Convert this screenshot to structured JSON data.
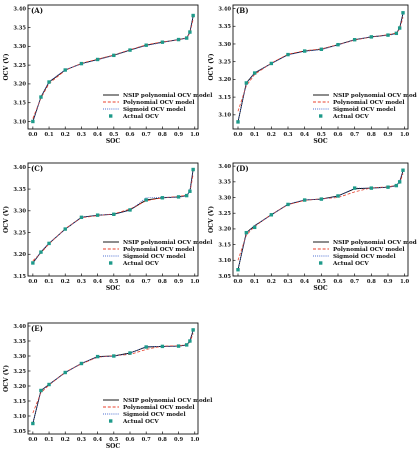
{
  "chart_data": [
    {
      "type": "line",
      "panel_label": "(A)",
      "xlabel": "SOC",
      "ylabel": "OCV (V)",
      "xlim": [
        -0.03,
        1.02
      ],
      "ylim": [
        3.08,
        3.41
      ],
      "x_ticks": [
        0.0,
        0.1,
        0.2,
        0.3,
        0.4,
        0.5,
        0.6,
        0.7,
        0.8,
        0.9,
        1.0
      ],
      "y_ticks": [
        3.1,
        3.15,
        3.2,
        3.25,
        3.3,
        3.35,
        3.4
      ],
      "x_tick_labels": [
        "0.0",
        "0.1",
        "0.2",
        "0.3",
        "0.4",
        "0.5",
        "0.6",
        "0.7",
        "0.8",
        "0.9",
        "1.0"
      ],
      "y_tick_labels": [
        "3.10",
        "3.15",
        "3.20",
        "3.25",
        "3.30",
        "3.35",
        "3.40"
      ],
      "legend_position": "lower-right",
      "x": [
        0.0,
        0.05,
        0.1,
        0.2,
        0.3,
        0.4,
        0.5,
        0.6,
        0.7,
        0.8,
        0.9,
        0.95,
        0.97,
        0.99
      ],
      "series": [
        {
          "name": "NSIP polynomial OCV model",
          "style": "solid",
          "color": "#000000",
          "values": [
            3.1,
            3.165,
            3.205,
            3.237,
            3.254,
            3.265,
            3.276,
            3.29,
            3.303,
            3.311,
            3.318,
            3.322,
            3.338,
            3.38
          ]
        },
        {
          "name": "Polynomial OCV model",
          "style": "dashed",
          "color": "#e8412c",
          "values": [
            3.108,
            3.162,
            3.201,
            3.236,
            3.255,
            3.266,
            3.277,
            3.291,
            3.304,
            3.312,
            3.317,
            3.323,
            3.335,
            3.372
          ]
        },
        {
          "name": "Sigmoid OCV model",
          "style": "dotted",
          "color": "#3a5fcd",
          "values": [
            3.098,
            3.166,
            3.206,
            3.238,
            3.253,
            3.264,
            3.276,
            3.29,
            3.302,
            3.31,
            3.318,
            3.321,
            3.337,
            3.381
          ]
        },
        {
          "name": "Actual OCV",
          "style": "marker",
          "color": "#1e9a8a",
          "values": [
            3.1,
            3.165,
            3.205,
            3.237,
            3.254,
            3.265,
            3.276,
            3.29,
            3.303,
            3.311,
            3.318,
            3.322,
            3.338,
            3.382
          ]
        }
      ]
    },
    {
      "type": "line",
      "panel_label": "(B)",
      "xlabel": "SOC",
      "ylabel": "OCV (V)",
      "xlim": [
        -0.03,
        1.02
      ],
      "ylim": [
        3.06,
        3.41
      ],
      "x_ticks": [
        0.0,
        0.1,
        0.2,
        0.3,
        0.4,
        0.5,
        0.6,
        0.7,
        0.8,
        0.9,
        1.0
      ],
      "y_ticks": [
        3.1,
        3.15,
        3.2,
        3.25,
        3.3,
        3.35,
        3.4
      ],
      "x_tick_labels": [
        "0.0",
        "0.1",
        "0.2",
        "0.3",
        "0.4",
        "0.5",
        "0.6",
        "0.7",
        "0.8",
        "0.9",
        "1.0"
      ],
      "y_tick_labels": [
        "3.10",
        "3.15",
        "3.20",
        "3.25",
        "3.30",
        "3.35",
        "3.40"
      ],
      "legend_position": "lower-right",
      "x": [
        0.0,
        0.05,
        0.1,
        0.2,
        0.3,
        0.4,
        0.5,
        0.6,
        0.7,
        0.8,
        0.9,
        0.95,
        0.97,
        0.99
      ],
      "series": [
        {
          "name": "NSIP polynomial OCV model",
          "style": "solid",
          "color": "#000000",
          "values": [
            3.08,
            3.19,
            3.218,
            3.245,
            3.27,
            3.28,
            3.285,
            3.298,
            3.312,
            3.32,
            3.325,
            3.33,
            3.345,
            3.386
          ]
        },
        {
          "name": "Polynomial OCV model",
          "style": "dashed",
          "color": "#e8412c",
          "values": [
            3.11,
            3.182,
            3.214,
            3.246,
            3.271,
            3.281,
            3.286,
            3.298,
            3.311,
            3.32,
            3.326,
            3.331,
            3.342,
            3.375
          ]
        },
        {
          "name": "Sigmoid OCV model",
          "style": "dotted",
          "color": "#3a5fcd",
          "values": [
            3.082,
            3.188,
            3.219,
            3.245,
            3.269,
            3.279,
            3.284,
            3.297,
            3.312,
            3.321,
            3.324,
            3.329,
            3.346,
            3.385
          ]
        },
        {
          "name": "Actual OCV",
          "style": "marker",
          "color": "#1e9a8a",
          "values": [
            3.08,
            3.19,
            3.218,
            3.245,
            3.27,
            3.28,
            3.285,
            3.298,
            3.312,
            3.32,
            3.325,
            3.33,
            3.345,
            3.388
          ]
        }
      ]
    },
    {
      "type": "line",
      "panel_label": "(C)",
      "xlabel": "SOC",
      "ylabel": "OCV (V)",
      "xlim": [
        -0.03,
        1.02
      ],
      "ylim": [
        3.15,
        3.41
      ],
      "x_ticks": [
        0.0,
        0.1,
        0.2,
        0.3,
        0.4,
        0.5,
        0.6,
        0.7,
        0.8,
        0.9,
        1.0
      ],
      "y_ticks": [
        3.15,
        3.2,
        3.25,
        3.3,
        3.35,
        3.4
      ],
      "x_tick_labels": [
        "0.0",
        "0.1",
        "0.2",
        "0.3",
        "0.4",
        "0.5",
        "0.6",
        "0.7",
        "0.8",
        "0.9",
        "1.0"
      ],
      "y_tick_labels": [
        "3.15",
        "3.20",
        "3.25",
        "3.30",
        "3.35",
        "3.40"
      ],
      "legend_position": "lower-right",
      "x": [
        0.0,
        0.05,
        0.1,
        0.2,
        0.3,
        0.4,
        0.5,
        0.6,
        0.7,
        0.8,
        0.9,
        0.95,
        0.97,
        0.99
      ],
      "series": [
        {
          "name": "NSIP polynomial OCV model",
          "style": "solid",
          "color": "#000000",
          "values": [
            3.18,
            3.205,
            3.225,
            3.258,
            3.285,
            3.29,
            3.292,
            3.302,
            3.325,
            3.33,
            3.332,
            3.335,
            3.345,
            3.395
          ]
        },
        {
          "name": "Polynomial OCV model",
          "style": "dashed",
          "color": "#e8412c",
          "values": [
            3.185,
            3.203,
            3.224,
            3.259,
            3.284,
            3.289,
            3.293,
            3.304,
            3.323,
            3.33,
            3.333,
            3.336,
            3.342,
            3.384
          ]
        },
        {
          "name": "Sigmoid OCV model",
          "style": "dotted",
          "color": "#3a5fcd",
          "values": [
            3.179,
            3.206,
            3.226,
            3.257,
            3.285,
            3.29,
            3.292,
            3.301,
            3.33,
            3.331,
            3.331,
            3.334,
            3.346,
            3.396
          ]
        },
        {
          "name": "Actual OCV",
          "style": "marker",
          "color": "#1e9a8a",
          "values": [
            3.18,
            3.205,
            3.225,
            3.258,
            3.285,
            3.29,
            3.292,
            3.302,
            3.325,
            3.33,
            3.332,
            3.335,
            3.345,
            3.395
          ]
        }
      ]
    },
    {
      "type": "line",
      "panel_label": "(D)",
      "xlabel": "SOC",
      "ylabel": "OCV (V)",
      "xlim": [
        -0.03,
        1.02
      ],
      "ylim": [
        3.05,
        3.41
      ],
      "x_ticks": [
        0.0,
        0.1,
        0.2,
        0.3,
        0.4,
        0.5,
        0.6,
        0.7,
        0.8,
        0.9,
        1.0
      ],
      "y_ticks": [
        3.05,
        3.1,
        3.15,
        3.2,
        3.25,
        3.3,
        3.35,
        3.4
      ],
      "x_tick_labels": [
        "0.0",
        "0.1",
        "0.2",
        "0.3",
        "0.4",
        "0.5",
        "0.6",
        "0.7",
        "0.8",
        "0.9",
        "1.0"
      ],
      "y_tick_labels": [
        "3.05",
        "3.10",
        "3.15",
        "3.20",
        "3.25",
        "3.30",
        "3.35",
        "3.40"
      ],
      "legend_position": "lower-right",
      "x": [
        0.0,
        0.05,
        0.1,
        0.2,
        0.3,
        0.4,
        0.5,
        0.6,
        0.7,
        0.8,
        0.9,
        0.95,
        0.97,
        0.99
      ],
      "series": [
        {
          "name": "NSIP polynomial OCV model",
          "style": "solid",
          "color": "#000000",
          "values": [
            3.07,
            3.188,
            3.21,
            3.245,
            3.278,
            3.292,
            3.295,
            3.305,
            3.328,
            3.33,
            3.333,
            3.338,
            3.35,
            3.385
          ]
        },
        {
          "name": "Polynomial OCV model",
          "style": "dashed",
          "color": "#e8412c",
          "values": [
            3.1,
            3.18,
            3.208,
            3.246,
            3.277,
            3.291,
            3.296,
            3.3,
            3.318,
            3.331,
            3.334,
            3.339,
            3.346,
            3.376
          ]
        },
        {
          "name": "Sigmoid OCV model",
          "style": "dotted",
          "color": "#3a5fcd",
          "values": [
            3.072,
            3.186,
            3.211,
            3.244,
            3.279,
            3.293,
            3.294,
            3.304,
            3.33,
            3.33,
            3.332,
            3.337,
            3.351,
            3.386
          ]
        },
        {
          "name": "Actual OCV",
          "style": "marker",
          "color": "#1e9a8a",
          "values": [
            3.07,
            3.188,
            3.205,
            3.245,
            3.278,
            3.292,
            3.295,
            3.305,
            3.33,
            3.33,
            3.333,
            3.338,
            3.35,
            3.387
          ]
        }
      ]
    },
    {
      "type": "line",
      "panel_label": "(E)",
      "xlabel": "SOC",
      "ylabel": "OCV (V)",
      "xlim": [
        -0.03,
        1.02
      ],
      "ylim": [
        3.04,
        3.41
      ],
      "x_ticks": [
        0.0,
        0.1,
        0.2,
        0.3,
        0.4,
        0.5,
        0.6,
        0.7,
        0.8,
        0.9,
        1.0
      ],
      "y_ticks": [
        3.05,
        3.1,
        3.15,
        3.2,
        3.25,
        3.3,
        3.35,
        3.4
      ],
      "x_tick_labels": [
        "0.0",
        "0.1",
        "0.2",
        "0.3",
        "0.4",
        "0.5",
        "0.6",
        "0.7",
        "0.8",
        "0.9",
        "1.0"
      ],
      "y_tick_labels": [
        "3.05",
        "3.10",
        "3.15",
        "3.20",
        "3.25",
        "3.30",
        "3.35",
        "3.40"
      ],
      "legend_position": "lower-right",
      "x": [
        0.0,
        0.05,
        0.1,
        0.2,
        0.3,
        0.4,
        0.5,
        0.6,
        0.7,
        0.8,
        0.9,
        0.95,
        0.97,
        0.99
      ],
      "series": [
        {
          "name": "NSIP polynomial OCV model",
          "style": "solid",
          "color": "#000000",
          "values": [
            3.075,
            3.185,
            3.205,
            3.245,
            3.275,
            3.298,
            3.3,
            3.31,
            3.33,
            3.332,
            3.333,
            3.337,
            3.35,
            3.385
          ]
        },
        {
          "name": "Polynomial OCV model",
          "style": "dashed",
          "color": "#e8412c",
          "values": [
            3.11,
            3.178,
            3.203,
            3.246,
            3.274,
            3.296,
            3.301,
            3.305,
            3.322,
            3.333,
            3.334,
            3.338,
            3.346,
            3.375
          ]
        },
        {
          "name": "Sigmoid OCV model",
          "style": "dotted",
          "color": "#3a5fcd",
          "values": [
            3.077,
            3.183,
            3.206,
            3.244,
            3.276,
            3.297,
            3.299,
            3.309,
            3.332,
            3.331,
            3.332,
            3.336,
            3.351,
            3.386
          ]
        },
        {
          "name": "Actual OCV",
          "style": "marker",
          "color": "#1e9a8a",
          "values": [
            3.075,
            3.185,
            3.205,
            3.245,
            3.275,
            3.298,
            3.3,
            3.31,
            3.33,
            3.332,
            3.333,
            3.337,
            3.35,
            3.387
          ]
        }
      ]
    }
  ]
}
